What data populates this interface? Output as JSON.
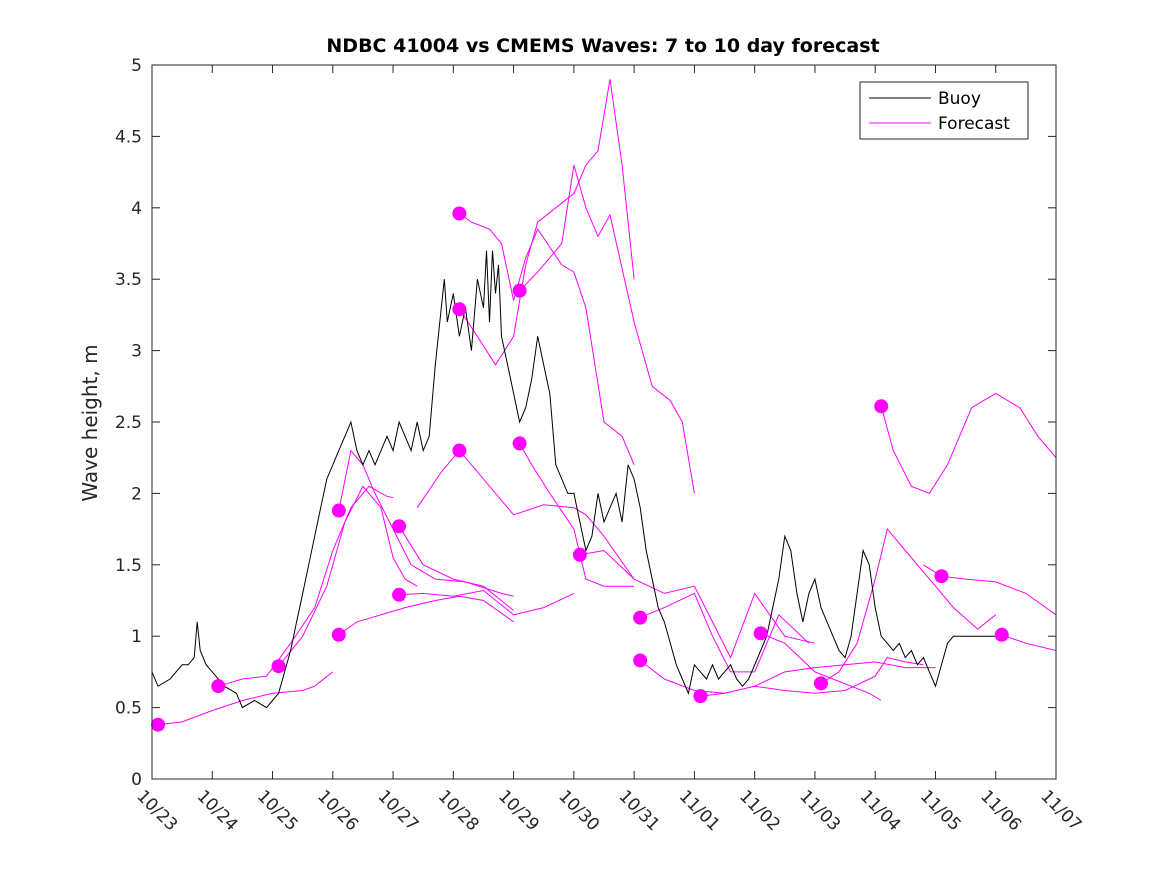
{
  "chart_data": {
    "type": "line",
    "title": "NDBC 41004 vs CMEMS Waves: 7 to 10 day forecast",
    "xlabel": "",
    "ylabel": "Wave height, m",
    "ylim": [
      0,
      5
    ],
    "xlim": [
      0,
      15
    ],
    "yticks": [
      "0",
      "0.5",
      "1",
      "1.5",
      "2",
      "2.5",
      "3",
      "3.5",
      "4",
      "4.5",
      "5"
    ],
    "xticks": [
      "10/23",
      "10/24",
      "10/25",
      "10/26",
      "10/27",
      "10/28",
      "10/29",
      "10/30",
      "10/31",
      "11/01",
      "11/02",
      "11/03",
      "11/04",
      "11/05",
      "11/06",
      "11/07"
    ],
    "legend": {
      "position": "top-right",
      "entries": [
        {
          "label": "Buoy",
          "color": "#000000"
        },
        {
          "label": "Forecast",
          "color": "#ff00ff"
        }
      ]
    },
    "colors": {
      "buoy": "#000000",
      "forecast": "#ff00ff"
    },
    "buoy": {
      "name": "Buoy",
      "x": [
        0,
        0.1,
        0.3,
        0.5,
        0.6,
        0.7,
        0.75,
        0.8,
        0.9,
        1.0,
        1.2,
        1.4,
        1.5,
        1.7,
        1.9,
        2.0,
        2.1,
        2.2,
        2.3,
        2.4,
        2.5,
        2.6,
        2.7,
        2.8,
        2.9,
        3.0,
        3.1,
        3.2,
        3.3,
        3.4,
        3.5,
        3.6,
        3.7,
        3.8,
        3.9,
        4.0,
        4.1,
        4.2,
        4.3,
        4.4,
        4.5,
        4.6,
        4.7,
        4.8,
        4.85,
        4.9,
        5.0,
        5.1,
        5.2,
        5.3,
        5.4,
        5.5,
        5.55,
        5.6,
        5.65,
        5.7,
        5.75,
        5.8,
        5.9,
        6.0,
        6.1,
        6.2,
        6.3,
        6.4,
        6.5,
        6.6,
        6.7,
        6.8,
        6.9,
        7.0,
        7.1,
        7.2,
        7.3,
        7.4,
        7.5,
        7.6,
        7.7,
        7.8,
        7.9,
        8.0,
        8.1,
        8.2,
        8.3,
        8.4,
        8.5,
        8.6,
        8.7,
        8.8,
        8.9,
        9.0,
        9.1,
        9.2,
        9.3,
        9.4,
        9.5,
        9.6,
        9.7,
        9.8,
        9.9,
        10.0,
        10.1,
        10.2,
        10.3,
        10.4,
        10.5,
        10.6,
        10.7,
        10.8,
        10.9,
        11.0,
        11.1,
        11.2,
        11.3,
        11.4,
        11.5,
        11.6,
        11.7,
        11.8,
        11.9,
        12.0,
        12.1,
        12.2,
        12.3,
        12.4,
        12.5,
        12.6,
        12.7,
        12.8,
        12.9,
        13.0,
        13.1,
        13.2,
        13.3,
        13.4,
        13.5,
        13.6,
        13.7,
        13.8,
        13.9,
        14.0,
        14.1,
        14.2
      ],
      "values": [
        0.75,
        0.65,
        0.7,
        0.8,
        0.8,
        0.85,
        1.1,
        0.9,
        0.8,
        0.75,
        0.65,
        0.6,
        0.5,
        0.55,
        0.5,
        0.55,
        0.6,
        0.75,
        0.9,
        1.1,
        1.3,
        1.5,
        1.7,
        1.9,
        2.1,
        2.2,
        2.3,
        2.4,
        2.5,
        2.3,
        2.2,
        2.3,
        2.2,
        2.3,
        2.4,
        2.3,
        2.5,
        2.4,
        2.3,
        2.5,
        2.3,
        2.4,
        2.9,
        3.3,
        3.5,
        3.2,
        3.4,
        3.1,
        3.3,
        3.0,
        3.5,
        3.3,
        3.7,
        3.2,
        3.7,
        3.4,
        3.6,
        3.1,
        2.9,
        2.7,
        2.5,
        2.6,
        2.8,
        3.1,
        2.9,
        2.7,
        2.2,
        2.1,
        2.0,
        2.0,
        1.8,
        1.6,
        1.7,
        2.0,
        1.8,
        1.9,
        2.0,
        1.8,
        2.2,
        2.1,
        1.9,
        1.6,
        1.4,
        1.2,
        1.1,
        0.95,
        0.8,
        0.7,
        0.6,
        0.8,
        0.75,
        0.7,
        0.8,
        0.7,
        0.75,
        0.8,
        0.7,
        0.65,
        0.7,
        0.8,
        0.9,
        1.0,
        1.2,
        1.4,
        1.7,
        1.6,
        1.3,
        1.1,
        1.3,
        1.4,
        1.2,
        1.1,
        1.0,
        0.9,
        0.85,
        1.0,
        1.3,
        1.6,
        1.5,
        1.2,
        1.0,
        0.95,
        0.9,
        0.95,
        0.85,
        0.9,
        0.8,
        0.85,
        0.75,
        0.65,
        0.8,
        0.95,
        1.0,
        1.0,
        1.0,
        1.0,
        1.0,
        1.0,
        1.0,
        1.0,
        1.0,
        1.0
      ]
    },
    "forecast_series": [
      {
        "name": "Forecast",
        "start": [
          0.1,
          0.38
        ],
        "x": [
          0.1,
          0.5,
          1.0,
          1.5,
          2.0,
          2.5,
          2.7,
          3.0
        ],
        "values": [
          0.38,
          0.4,
          0.48,
          0.55,
          0.6,
          0.62,
          0.65,
          0.75
        ]
      },
      {
        "name": "Forecast",
        "start": [
          1.1,
          0.65
        ],
        "x": [
          1.1,
          1.5,
          1.9,
          2.3,
          2.7,
          3.0,
          3.3,
          3.6,
          3.9,
          4.0
        ],
        "values": [
          0.65,
          0.7,
          0.72,
          0.95,
          1.2,
          1.6,
          1.9,
          2.05,
          1.98,
          1.97
        ]
      },
      {
        "name": "Forecast",
        "start": [
          2.1,
          0.79
        ],
        "x": [
          2.1,
          2.5,
          2.9,
          3.2,
          3.5,
          3.8,
          4.0,
          4.2,
          4.4
        ],
        "values": [
          0.79,
          1.0,
          1.35,
          1.8,
          2.05,
          1.9,
          1.55,
          1.4,
          1.35
        ]
      },
      {
        "name": "Forecast",
        "start": [
          3.1,
          1.88
        ],
        "x": [
          3.1,
          3.3,
          3.5,
          3.7,
          4.0,
          4.3,
          4.7,
          5.2,
          5.8,
          6.0
        ],
        "values": [
          1.88,
          2.3,
          2.2,
          2.0,
          1.75,
          1.5,
          1.4,
          1.38,
          1.3,
          1.28
        ]
      },
      {
        "name": "Forecast",
        "start": [
          3.1,
          1.01
        ],
        "x": [
          3.1,
          3.4,
          3.8,
          4.2,
          4.7,
          5.1,
          5.5,
          6.0
        ],
        "values": [
          1.01,
          1.1,
          1.15,
          1.2,
          1.25,
          1.28,
          1.25,
          1.1
        ]
      },
      {
        "name": "Forecast",
        "start": [
          4.1,
          1.77
        ],
        "x": [
          4.1,
          4.5,
          5.0,
          5.5,
          6.0
        ],
        "values": [
          1.77,
          1.5,
          1.4,
          1.35,
          1.18
        ]
      },
      {
        "name": "Forecast",
        "start": [
          4.1,
          1.29
        ],
        "x": [
          4.1,
          4.5,
          5.0,
          5.5,
          6.0,
          6.5,
          7.0
        ],
        "values": [
          1.29,
          1.3,
          1.28,
          1.32,
          1.15,
          1.2,
          1.3
        ]
      },
      {
        "name": "Forecast",
        "start": [
          5.1,
          3.96
        ],
        "x": [
          5.1,
          5.3,
          5.6,
          5.8,
          6.0,
          6.2,
          6.4,
          6.8,
          7.0,
          7.2,
          7.5,
          7.8,
          8.0
        ],
        "values": [
          3.96,
          3.9,
          3.85,
          3.75,
          3.35,
          3.65,
          3.85,
          3.6,
          3.55,
          3.3,
          2.5,
          2.4,
          2.2
        ]
      },
      {
        "name": "Forecast",
        "start": [
          5.1,
          3.29
        ],
        "x": [
          5.1,
          5.4,
          5.7,
          6.0,
          6.2,
          6.4,
          6.7,
          7.0,
          7.2,
          7.4,
          7.6,
          7.8,
          8.0
        ],
        "values": [
          3.29,
          3.1,
          2.9,
          3.1,
          3.6,
          3.9,
          4.0,
          4.1,
          4.3,
          4.4,
          4.9,
          4.3,
          3.5
        ]
      },
      {
        "name": "Forecast",
        "start": [
          6.1,
          3.42
        ],
        "x": [
          6.1,
          6.4,
          6.8,
          7.0,
          7.2,
          7.4,
          7.6,
          8.0,
          8.3,
          8.6,
          8.8,
          9.0
        ],
        "values": [
          3.42,
          3.55,
          3.75,
          4.3,
          4.0,
          3.8,
          3.95,
          3.2,
          2.75,
          2.65,
          2.5,
          2.0
        ]
      },
      {
        "name": "Forecast",
        "start": [
          6.1,
          2.35
        ],
        "x": [
          6.1,
          6.3,
          6.6,
          7.0,
          7.2,
          7.5,
          8.0
        ],
        "values": [
          2.35,
          2.2,
          2.0,
          1.75,
          1.4,
          1.35,
          1.35
        ]
      },
      {
        "name": "Forecast",
        "start": [
          5.1,
          2.3
        ],
        "x": [
          4.4,
          4.8,
          5.1,
          5.5,
          6.0,
          6.5,
          7.0,
          7.2,
          7.5,
          8.0
        ],
        "values": [
          1.9,
          2.15,
          2.3,
          2.1,
          1.85,
          1.92,
          1.9,
          1.85,
          1.7,
          1.4
        ]
      },
      {
        "name": "Forecast",
        "start": [
          7.1,
          1.57
        ],
        "x": [
          7.1,
          7.5,
          8.0,
          8.5,
          9.0,
          9.3,
          9.6,
          10.0,
          10.5,
          11.0
        ],
        "values": [
          1.57,
          1.6,
          1.4,
          1.3,
          1.35,
          1.1,
          0.85,
          1.3,
          1.0,
          0.95
        ]
      },
      {
        "name": "Forecast",
        "start": [
          8.1,
          1.13
        ],
        "x": [
          8.1,
          8.5,
          9.0,
          9.3,
          9.6,
          10.0,
          10.4,
          10.9
        ],
        "values": [
          1.13,
          1.2,
          1.3,
          1.0,
          0.75,
          0.75,
          1.15,
          0.95
        ]
      },
      {
        "name": "Forecast",
        "start": [
          8.1,
          0.83
        ],
        "x": [
          8.1,
          8.5,
          9.0,
          9.5,
          10.0,
          10.5,
          11.0,
          11.5,
          12.0,
          12.5,
          13.0
        ],
        "values": [
          0.83,
          0.7,
          0.62,
          0.6,
          0.65,
          0.75,
          0.78,
          0.8,
          0.82,
          0.78,
          0.78
        ]
      },
      {
        "name": "Forecast",
        "start": [
          9.1,
          0.58
        ],
        "x": [
          9.1,
          9.5,
          10.0,
          10.5,
          11.0,
          11.5,
          12.0,
          12.2,
          12.5,
          12.8
        ],
        "values": [
          0.58,
          0.6,
          0.65,
          0.62,
          0.6,
          0.62,
          0.72,
          0.85,
          0.82,
          0.8
        ]
      },
      {
        "name": "Forecast",
        "start": [
          10.1,
          1.02
        ],
        "x": [
          10.1,
          10.5,
          11.0,
          11.3,
          11.6,
          11.9,
          12.1
        ],
        "values": [
          1.02,
          0.95,
          0.75,
          0.7,
          0.65,
          0.6,
          0.55
        ]
      },
      {
        "name": "Forecast",
        "start": [
          11.1,
          0.67
        ],
        "x": [
          11.1,
          11.4,
          11.7,
          12.0,
          12.2,
          12.5,
          12.8,
          13.0,
          13.3,
          13.7,
          14.0
        ],
        "values": [
          0.67,
          0.75,
          0.95,
          1.4,
          1.75,
          1.6,
          1.45,
          1.35,
          1.2,
          1.05,
          1.15
        ]
      },
      {
        "name": "Forecast",
        "start": [
          12.1,
          2.61
        ],
        "x": [
          12.1,
          12.3,
          12.6,
          12.9,
          13.2,
          13.6,
          14.0,
          14.4,
          14.7,
          15.0
        ],
        "values": [
          2.61,
          2.3,
          2.05,
          2.0,
          2.2,
          2.6,
          2.7,
          2.6,
          2.4,
          2.25
        ]
      },
      {
        "name": "Forecast",
        "start": [
          13.1,
          1.42
        ],
        "x": [
          12.8,
          13.1,
          13.5,
          14.0,
          14.5,
          15.0
        ],
        "values": [
          1.5,
          1.42,
          1.4,
          1.38,
          1.3,
          1.15
        ]
      },
      {
        "name": "Forecast",
        "start": [
          14.1,
          1.01
        ],
        "x": [
          14.1,
          14.5,
          15.0
        ],
        "values": [
          1.01,
          0.95,
          0.9
        ]
      }
    ]
  }
}
